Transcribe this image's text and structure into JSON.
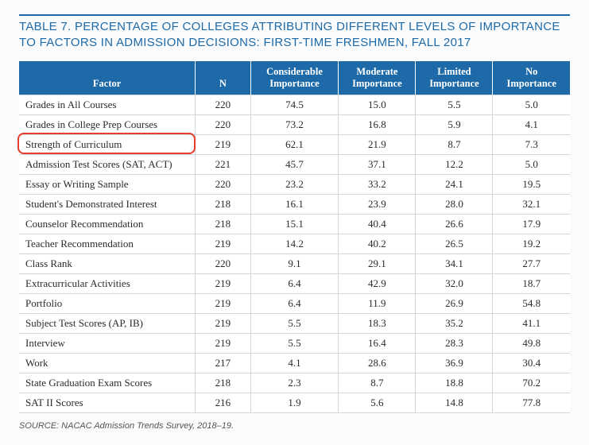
{
  "title": "TABLE 7. PERCENTAGE OF COLLEGES ATTRIBUTING DIFFERENT LEVELS OF IMPORTANCE TO FACTORS IN ADMISSION DECISIONS: FIRST-TIME FRESHMEN, FALL 2017",
  "source": "SOURCE: NACAC Admission Trends Survey, 2018–19.",
  "styling": {
    "accent_color": "#1e6aa8",
    "header_bg": "#1e6aa8",
    "header_text": "#ffffff",
    "cell_border": "#cfd6dc",
    "cell_bg": "#ffffff",
    "body_bg": "#fafbfc",
    "highlight_border": "#e63c2f",
    "title_fontsize": 15,
    "cell_fontsize": 13,
    "header_fontsize": 12.5,
    "source_fontsize": 11
  },
  "table": {
    "type": "table",
    "columns": [
      "Factor",
      "N",
      "Considerable Importance",
      "Moderate Importance",
      "Limited Importance",
      "No Importance"
    ],
    "col_widths_pct": [
      32,
      10,
      16,
      14,
      14,
      14
    ],
    "highlighted_row_index": 2,
    "rows": [
      [
        "Grades in All Courses",
        "220",
        "74.5",
        "15.0",
        "5.5",
        "5.0"
      ],
      [
        "Grades in College Prep Courses",
        "220",
        "73.2",
        "16.8",
        "5.9",
        "4.1"
      ],
      [
        "Strength of Curriculum",
        "219",
        "62.1",
        "21.9",
        "8.7",
        "7.3"
      ],
      [
        "Admission Test Scores (SAT, ACT)",
        "221",
        "45.7",
        "37.1",
        "12.2",
        "5.0"
      ],
      [
        "Essay or Writing Sample",
        "220",
        "23.2",
        "33.2",
        "24.1",
        "19.5"
      ],
      [
        "Student's Demonstrated Interest",
        "218",
        "16.1",
        "23.9",
        "28.0",
        "32.1"
      ],
      [
        "Counselor Recommendation",
        "218",
        "15.1",
        "40.4",
        "26.6",
        "17.9"
      ],
      [
        "Teacher Recommendation",
        "219",
        "14.2",
        "40.2",
        "26.5",
        "19.2"
      ],
      [
        "Class Rank",
        "220",
        "9.1",
        "29.1",
        "34.1",
        "27.7"
      ],
      [
        "Extracurricular Activities",
        "219",
        "6.4",
        "42.9",
        "32.0",
        "18.7"
      ],
      [
        "Portfolio",
        "219",
        "6.4",
        "11.9",
        "26.9",
        "54.8"
      ],
      [
        "Subject Test Scores (AP, IB)",
        "219",
        "5.5",
        "18.3",
        "35.2",
        "41.1"
      ],
      [
        "Interview",
        "219",
        "5.5",
        "16.4",
        "28.3",
        "49.8"
      ],
      [
        "Work",
        "217",
        "4.1",
        "28.6",
        "36.9",
        "30.4"
      ],
      [
        "State Graduation Exam Scores",
        "218",
        "2.3",
        "8.7",
        "18.8",
        "70.2"
      ],
      [
        "SAT II Scores",
        "216",
        "1.9",
        "5.6",
        "14.8",
        "77.8"
      ]
    ]
  }
}
